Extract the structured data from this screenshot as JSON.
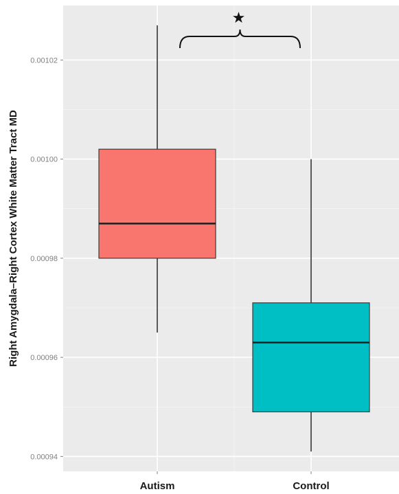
{
  "chart_data": {
    "type": "boxplot",
    "title": "",
    "xlabel": "",
    "ylabel": "Right Amygdala–Right Cortex White Matter Tract MD",
    "categories": [
      "Autism",
      "Control"
    ],
    "boxes": [
      {
        "category": "Autism",
        "min": 0.000965,
        "q1": 0.00098,
        "median": 0.000987,
        "q3": 0.001002,
        "max": 0.001027,
        "color": "#f8766d"
      },
      {
        "category": "Control",
        "min": 0.000941,
        "q1": 0.000949,
        "median": 0.000963,
        "q3": 0.000971,
        "max": 0.001,
        "color": "#00bfc4"
      }
    ],
    "ylim": [
      0.000937,
      0.001031
    ],
    "yticks": [
      0.00094,
      0.00096,
      0.00098,
      0.001,
      0.00102
    ],
    "ytick_labels": [
      "0.00094",
      "0.00096",
      "0.00098",
      "0.00100",
      "0.00102"
    ],
    "grid": true,
    "panel_background": "#ebebeb",
    "annotation": {
      "symbol": "★",
      "between": [
        "Autism",
        "Control"
      ],
      "meaning": "significant difference"
    }
  }
}
